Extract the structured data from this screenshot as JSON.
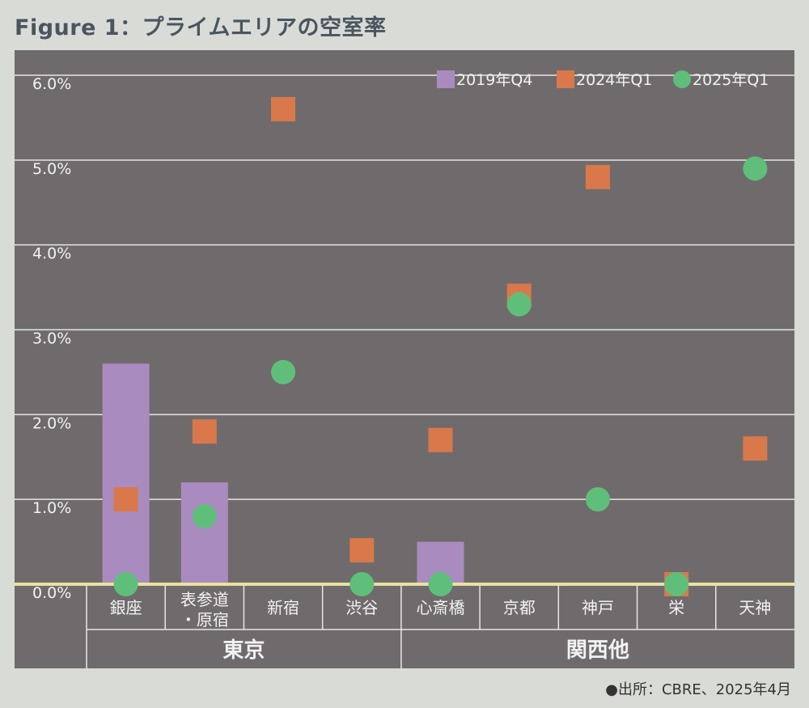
{
  "title": "Figure 1：プライムエリアの空室率",
  "source": "●出所：CBRE、2025年4月",
  "colors": {
    "background": "#d9dcd6",
    "plot_bg": "#6f6b6c",
    "grid": "#e6e6e6",
    "baseline": "#e8e3a0",
    "bar_2019Q4": "#a98bbf",
    "sq_2024Q1": "#d9784a",
    "dot_2025Q1": "#5fbf7a"
  },
  "chart_data": {
    "type": "bar",
    "categories": [
      "銀座",
      "表参道・原宿",
      "新宿",
      "渋谷",
      "心斎橋",
      "京都",
      "神戸",
      "栄",
      "天神"
    ],
    "category_lines": [
      [
        "銀座"
      ],
      [
        "表参道",
        "・原宿"
      ],
      [
        "新宿"
      ],
      [
        "渋谷"
      ],
      [
        "心斎橋"
      ],
      [
        "京都"
      ],
      [
        "神戸"
      ],
      [
        "栄"
      ],
      [
        "天神"
      ]
    ],
    "groups": [
      {
        "label": "東京",
        "from": 0,
        "to": 3
      },
      {
        "label": "関西他",
        "from": 4,
        "to": 8
      }
    ],
    "series": [
      {
        "name": "2019年Q4",
        "kind": "bar",
        "values": [
          2.6,
          1.2,
          0,
          0,
          0.5,
          0,
          0,
          0,
          0
        ]
      },
      {
        "name": "2024年Q1",
        "kind": "square",
        "values": [
          1.0,
          1.8,
          5.6,
          0.4,
          1.7,
          3.4,
          4.8,
          0.0,
          1.6
        ]
      },
      {
        "name": "2025年Q1",
        "kind": "circle",
        "values": [
          0.0,
          0.8,
          2.5,
          0.0,
          0.0,
          3.3,
          1.0,
          0.0,
          4.9
        ]
      }
    ],
    "yticks": [
      "0.0%",
      "1.0%",
      "2.0%",
      "3.0%",
      "4.0%",
      "5.0%",
      "6.0%"
    ],
    "ylim": [
      0,
      6
    ],
    "legend_position": "top-right",
    "grid": true
  }
}
